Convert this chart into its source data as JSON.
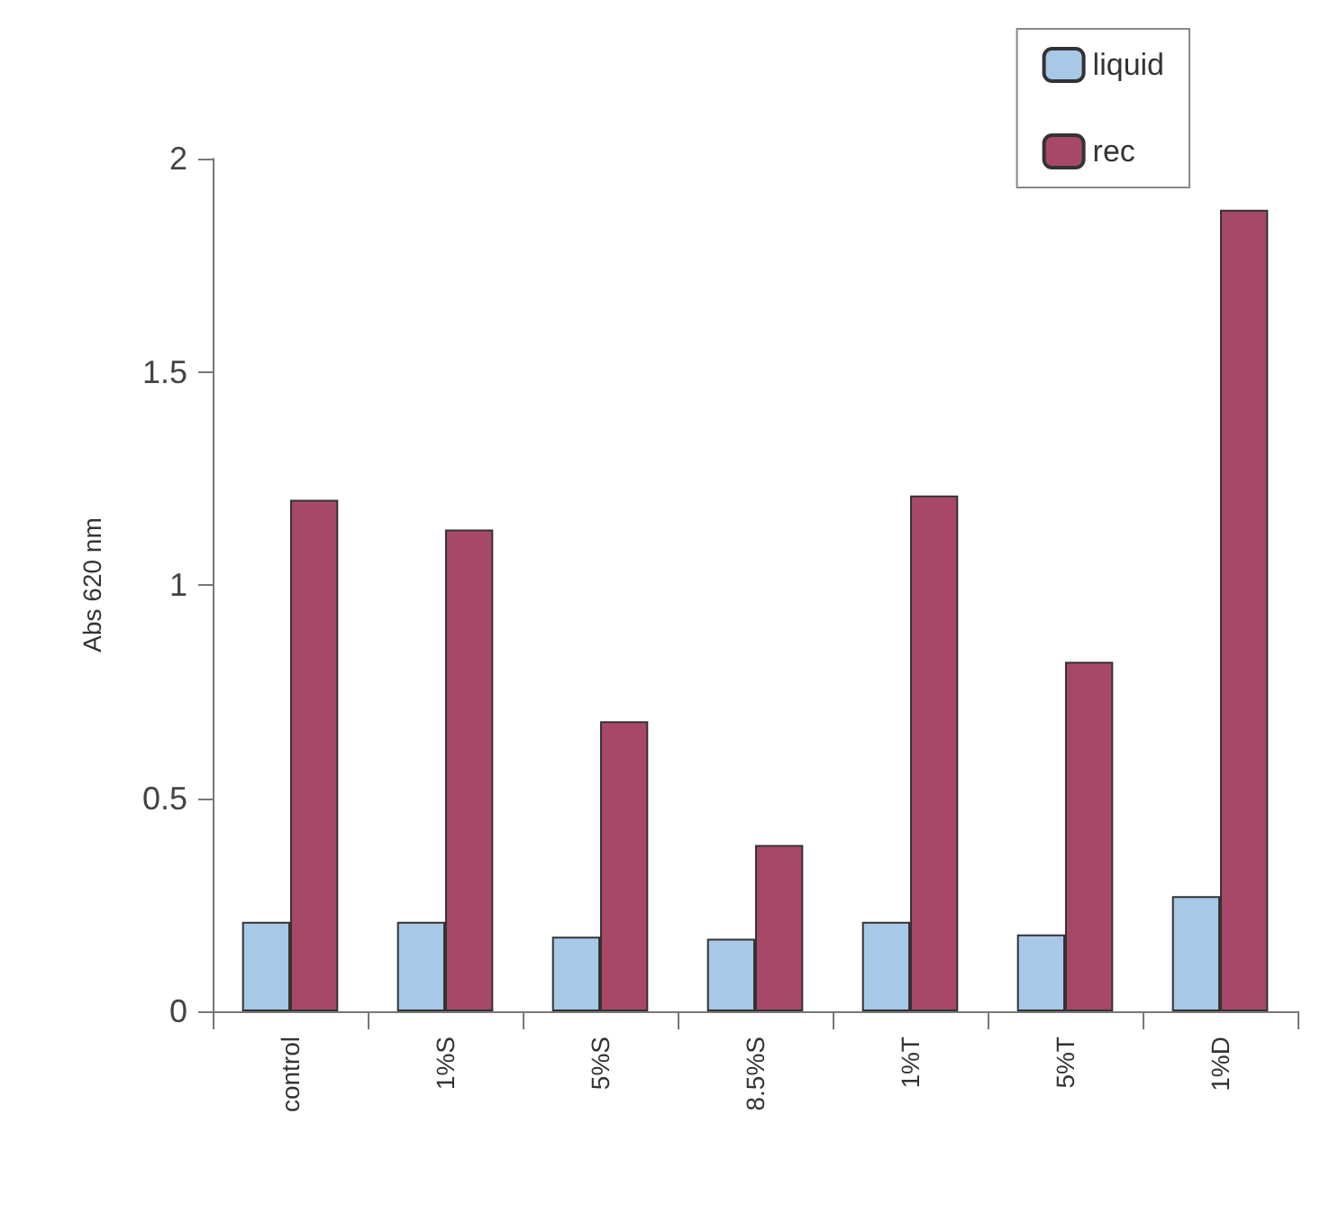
{
  "chart_data": {
    "type": "bar",
    "ylabel": "Abs 620 nm",
    "categories": [
      "control",
      "1%S",
      "5%S",
      "8.5%S",
      "1%T",
      "5%T",
      "1%D"
    ],
    "series": [
      {
        "name": "liquid",
        "color": "#a8c8e8",
        "values": [
          0.21,
          0.21,
          0.175,
          0.17,
          0.21,
          0.18,
          0.27
        ]
      },
      {
        "name": "rec",
        "color": "#a84868",
        "values": [
          1.2,
          1.13,
          0.68,
          0.39,
          1.21,
          0.82,
          1.88
        ]
      }
    ],
    "ylim": [
      0,
      2
    ],
    "yticks": [
      0,
      0.5,
      1,
      1.5,
      2
    ],
    "grid": false,
    "legend": "top right"
  }
}
